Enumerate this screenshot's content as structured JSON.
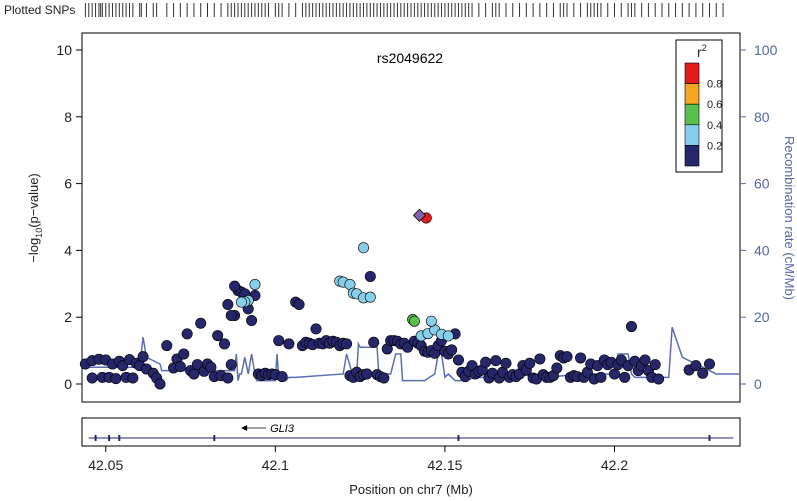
{
  "chart_data": {
    "type": "scatter",
    "title": "rs2049622",
    "xlabel": "Position on chr7 (Mb)",
    "ylabel_left": "−log10(p−value)",
    "ylabel_left_parts": {
      "prefix": "−log",
      "sub": "10",
      "suffix": "(p−value)"
    },
    "ylabel_right": "Recombination rate (cM/Mb)",
    "xlim": [
      42.043,
      42.237
    ],
    "ylim_left": [
      0,
      10
    ],
    "ylim_right": [
      0,
      100
    ],
    "xticks": [
      42.05,
      42.1,
      42.15,
      42.2
    ],
    "xtick_labels": [
      "42.05",
      "42.1",
      "42.15",
      "42.2"
    ],
    "yticks_left": [
      0,
      2,
      4,
      6,
      8,
      10
    ],
    "ytick_labels_left": [
      "0",
      "2",
      "4",
      "6",
      "8",
      "10"
    ],
    "yticks_right": [
      0,
      20,
      40,
      60,
      80,
      100
    ],
    "ytick_labels_right": [
      "0",
      "20",
      "40",
      "60",
      "80",
      "100"
    ],
    "legend": {
      "title": "r",
      "title_sup": "2",
      "placement": "top-right",
      "bins": [
        {
          "label": "0.8",
          "color": "#e41a1c"
        },
        {
          "label": "0.6",
          "color": "#f5a623"
        },
        {
          "label": "0.4",
          "color": "#5bbf4f"
        },
        {
          "label": "0.2",
          "color": "#87ceeb"
        },
        {
          "label": "",
          "color": "#26266b"
        }
      ]
    },
    "strip_label": "Plotted SNPs",
    "lead_snp": {
      "name": "rs2049622",
      "x": 42.1425,
      "y": 5.05,
      "color": "#8a5fb0"
    },
    "colors": {
      "r2_08": "#e41a1c",
      "r2_06": "#f5a623",
      "r2_04": "#5bbf4f",
      "r2_02": "#87ceeb",
      "r2_00": "#26266b",
      "recomb_line": "#5b6eb5",
      "right_axis": "#5566aa",
      "point_outline": "#000000"
    },
    "genes": [
      {
        "name": "GLI3",
        "start": 42.045,
        "end": 42.235,
        "strand": "-",
        "label_x": 42.102,
        "exons": [
          42.047,
          42.051,
          42.054,
          42.082,
          42.154,
          42.228
        ]
      }
    ],
    "series": [
      {
        "name": "r2 0.8-1.0",
        "color": "#e41a1c",
        "points": [
          [
            42.1445,
            4.97
          ]
        ]
      },
      {
        "name": "r2 0.4-0.6",
        "color": "#5bbf4f",
        "points": [
          [
            42.1405,
            1.93
          ],
          [
            42.141,
            1.88
          ]
        ]
      },
      {
        "name": "r2 0.2-0.4",
        "color": "#87ceeb",
        "points": [
          [
            42.126,
            4.08
          ],
          [
            42.119,
            3.08
          ],
          [
            42.12,
            3.05
          ],
          [
            42.122,
            2.98
          ],
          [
            42.123,
            2.72
          ],
          [
            42.124,
            2.7
          ],
          [
            42.126,
            2.58
          ],
          [
            42.128,
            2.6
          ],
          [
            42.094,
            2.98
          ],
          [
            42.092,
            2.5
          ],
          [
            42.091,
            2.46
          ],
          [
            42.09,
            2.45
          ],
          [
            42.143,
            1.44
          ],
          [
            42.145,
            1.51
          ],
          [
            42.147,
            1.62
          ],
          [
            42.146,
            1.88
          ],
          [
            42.149,
            1.49
          ],
          [
            42.151,
            1.44
          ]
        ]
      },
      {
        "name": "r2 0.0-0.2",
        "color": "#26266b",
        "points": [
          [
            42.044,
            0.6
          ],
          [
            42.046,
            0.7
          ],
          [
            42.048,
            0.74
          ],
          [
            42.05,
            0.72
          ],
          [
            42.052,
            0.6
          ],
          [
            42.054,
            0.68
          ],
          [
            42.055,
            0.55
          ],
          [
            42.057,
            0.73
          ],
          [
            42.059,
            0.62
          ],
          [
            42.06,
            0.55
          ],
          [
            42.046,
            0.18
          ],
          [
            42.049,
            0.2
          ],
          [
            42.051,
            0.2
          ],
          [
            42.053,
            0.16
          ],
          [
            42.056,
            0.2
          ],
          [
            42.058,
            0.18
          ],
          [
            42.061,
            0.82
          ],
          [
            42.062,
            0.45
          ],
          [
            42.064,
            0.32
          ],
          [
            42.065,
            0.18
          ],
          [
            42.066,
            0.0
          ],
          [
            42.068,
            1.15
          ],
          [
            42.07,
            0.48
          ],
          [
            42.071,
            0.75
          ],
          [
            42.072,
            0.52
          ],
          [
            42.073,
            0.9
          ],
          [
            42.074,
            1.5
          ],
          [
            42.075,
            0.4
          ],
          [
            42.076,
            0.3
          ],
          [
            42.077,
            0.58
          ],
          [
            42.078,
            1.82
          ],
          [
            42.079,
            0.38
          ],
          [
            42.08,
            0.6
          ],
          [
            42.081,
            0.5
          ],
          [
            42.082,
            0.22
          ],
          [
            42.083,
            1.45
          ],
          [
            42.084,
            0.25
          ],
          [
            42.085,
            1.2
          ],
          [
            42.086,
            0.18
          ],
          [
            42.087,
            0.58
          ],
          [
            42.088,
            2.05
          ],
          [
            42.087,
            2.05
          ],
          [
            42.089,
            2.8
          ],
          [
            42.09,
            2.75
          ],
          [
            42.091,
            2.7
          ],
          [
            42.092,
            2.25
          ],
          [
            42.093,
            1.9
          ],
          [
            42.094,
            2.65
          ],
          [
            42.088,
            2.93
          ],
          [
            42.086,
            2.38
          ],
          [
            42.095,
            0.3
          ],
          [
            42.096,
            0.25
          ],
          [
            42.097,
            0.32
          ],
          [
            42.098,
            0.28
          ],
          [
            42.099,
            0.3
          ],
          [
            42.1,
            0.28
          ],
          [
            42.101,
            1.3
          ],
          [
            42.102,
            0.22
          ],
          [
            42.104,
            1.2
          ],
          [
            42.106,
            2.45
          ],
          [
            42.107,
            2.38
          ],
          [
            42.108,
            1.15
          ],
          [
            42.109,
            1.25
          ],
          [
            42.11,
            1.22
          ],
          [
            42.111,
            1.18
          ],
          [
            42.112,
            1.65
          ],
          [
            42.113,
            1.22
          ],
          [
            42.114,
            1.2
          ],
          [
            42.115,
            1.3
          ],
          [
            42.116,
            1.22
          ],
          [
            42.117,
            1.28
          ],
          [
            42.118,
            1.25
          ],
          [
            42.119,
            1.15
          ],
          [
            42.12,
            1.22
          ],
          [
            42.121,
            1.2
          ],
          [
            42.122,
            0.25
          ],
          [
            42.123,
            0.2
          ],
          [
            42.124,
            0.35
          ],
          [
            42.125,
            0.22
          ],
          [
            42.126,
            0.28
          ],
          [
            42.127,
            0.3
          ],
          [
            42.128,
            3.22
          ],
          [
            42.129,
            1.25
          ],
          [
            42.13,
            0.28
          ],
          [
            42.131,
            0.22
          ],
          [
            42.132,
            0.18
          ],
          [
            42.133,
            1.05
          ],
          [
            42.134,
            1.3
          ],
          [
            42.135,
            1.3
          ],
          [
            42.136,
            1.28
          ],
          [
            42.137,
            1.2
          ],
          [
            42.138,
            1.22
          ],
          [
            42.139,
            1.1
          ],
          [
            42.141,
            1.28
          ],
          [
            42.142,
            1.22
          ],
          [
            42.143,
            1.15
          ],
          [
            42.144,
            0.98
          ],
          [
            42.145,
            0.95
          ],
          [
            42.146,
            1.0
          ],
          [
            42.147,
            0.92
          ],
          [
            42.148,
            1.15
          ],
          [
            42.149,
            1.3
          ],
          [
            42.15,
            0.98
          ],
          [
            42.151,
            0.9
          ],
          [
            42.152,
            1.02
          ],
          [
            42.153,
            1.5
          ],
          [
            42.154,
            0.72
          ],
          [
            42.155,
            0.35
          ],
          [
            42.156,
            0.22
          ],
          [
            42.157,
            0.38
          ],
          [
            42.158,
            0.55
          ],
          [
            42.159,
            0.3
          ],
          [
            42.16,
            0.38
          ],
          [
            42.161,
            0.42
          ],
          [
            42.162,
            0.65
          ],
          [
            42.163,
            0.18
          ],
          [
            42.164,
            0.32
          ],
          [
            42.165,
            0.7
          ],
          [
            42.166,
            0.18
          ],
          [
            42.167,
            0.35
          ],
          [
            42.168,
            0.62
          ],
          [
            42.169,
            0.2
          ],
          [
            42.17,
            0.28
          ],
          [
            42.171,
            0.22
          ],
          [
            42.172,
            0.3
          ],
          [
            42.173,
            0.55
          ],
          [
            42.174,
            0.42
          ],
          [
            42.175,
            0.62
          ],
          [
            42.176,
            0.18
          ],
          [
            42.177,
            0.15
          ],
          [
            42.178,
            0.75
          ],
          [
            42.179,
            0.28
          ],
          [
            42.18,
            0.2
          ],
          [
            42.181,
            0.2
          ],
          [
            42.182,
            0.25
          ],
          [
            42.183,
            0.48
          ],
          [
            42.184,
            0.85
          ],
          [
            42.185,
            0.78
          ],
          [
            42.186,
            0.82
          ],
          [
            42.187,
            0.2
          ],
          [
            42.188,
            0.25
          ],
          [
            42.189,
            0.22
          ],
          [
            42.19,
            0.78
          ],
          [
            42.191,
            0.2
          ],
          [
            42.192,
            0.35
          ],
          [
            42.193,
            0.6
          ],
          [
            42.194,
            0.15
          ],
          [
            42.195,
            0.55
          ],
          [
            42.196,
            0.2
          ],
          [
            42.197,
            0.72
          ],
          [
            42.198,
            0.58
          ],
          [
            42.199,
            0.65
          ],
          [
            42.2,
            0.3
          ],
          [
            42.201,
            0.58
          ],
          [
            42.202,
            0.72
          ],
          [
            42.203,
            0.2
          ],
          [
            42.204,
            0.55
          ],
          [
            42.205,
            1.72
          ],
          [
            42.206,
            0.68
          ],
          [
            42.207,
            0.4
          ],
          [
            42.208,
            0.55
          ],
          [
            42.209,
            0.72
          ],
          [
            42.21,
            0.4
          ],
          [
            42.211,
            0.2
          ],
          [
            42.212,
            0.58
          ],
          [
            42.213,
            0.15
          ],
          [
            42.222,
            0.42
          ],
          [
            42.224,
            0.55
          ],
          [
            42.226,
            0.32
          ],
          [
            42.228,
            0.6
          ]
        ]
      }
    ],
    "recombination": {
      "x": [
        42.043,
        42.055,
        42.06,
        42.061,
        42.062,
        42.066,
        42.0665,
        42.076,
        42.088,
        42.0885,
        42.089,
        42.0895,
        42.09,
        42.091,
        42.092,
        42.093,
        42.094,
        42.0945,
        42.1,
        42.1005,
        42.101,
        42.103,
        42.104,
        42.106,
        42.12,
        42.121,
        42.123,
        42.124,
        42.1245,
        42.125,
        42.13,
        42.1305,
        42.134,
        42.1355,
        42.137,
        42.1375,
        42.144,
        42.147,
        42.148,
        42.149,
        42.15,
        42.151,
        42.153,
        42.154,
        42.155,
        42.16,
        42.165,
        42.17,
        42.18,
        42.19,
        42.195,
        42.2,
        42.201,
        42.204,
        42.205,
        42.206,
        42.216,
        42.217,
        42.22,
        42.23,
        42.237
      ],
      "y": [
        5,
        5,
        5,
        14,
        8,
        6,
        4,
        4,
        4,
        9,
        1,
        3,
        3,
        8,
        3,
        9,
        3,
        1,
        1,
        9,
        2,
        1,
        2,
        2,
        3,
        9,
        2,
        3,
        12,
        11,
        11,
        3,
        3,
        9,
        9,
        1,
        1,
        3,
        9,
        9,
        2,
        3,
        1,
        1,
        1,
        2,
        2,
        3,
        2,
        3,
        3,
        3,
        9,
        9,
        3,
        2,
        2,
        17,
        8,
        3,
        3
      ]
    },
    "plotted_snps": [
      42.044,
      42.045,
      42.046,
      42.047,
      42.048,
      42.0485,
      42.049,
      42.05,
      42.051,
      42.052,
      42.053,
      42.054,
      42.055,
      42.056,
      42.057,
      42.058,
      42.06,
      42.0605,
      42.062,
      42.064,
      42.065,
      42.068,
      42.07,
      42.072,
      42.074,
      42.076,
      42.078,
      42.08,
      42.082,
      42.084,
      42.086,
      42.087,
      42.088,
      42.089,
      42.09,
      42.091,
      42.092,
      42.093,
      42.094,
      42.095,
      42.096,
      42.097,
      42.098,
      42.1,
      42.101,
      42.102,
      42.104,
      42.106,
      42.108,
      42.109,
      42.11,
      42.111,
      42.112,
      42.113,
      42.114,
      42.115,
      42.116,
      42.117,
      42.118,
      42.119,
      42.12,
      42.121,
      42.122,
      42.123,
      42.124,
      42.125,
      42.126,
      42.127,
      42.128,
      42.129,
      42.13,
      42.131,
      42.132,
      42.133,
      42.134,
      42.135,
      42.136,
      42.137,
      42.138,
      42.139,
      42.14,
      42.141,
      42.142,
      42.143,
      42.144,
      42.145,
      42.146,
      42.147,
      42.148,
      42.149,
      42.15,
      42.151,
      42.152,
      42.153,
      42.154,
      42.155,
      42.156,
      42.157,
      42.158,
      42.16,
      42.162,
      42.164,
      42.165,
      42.166,
      42.168,
      42.17,
      42.172,
      42.174,
      42.176,
      42.178,
      42.18,
      42.182,
      42.184,
      42.185,
      42.186,
      42.188,
      42.19,
      42.192,
      42.193,
      42.194,
      42.195,
      42.196,
      42.198,
      42.2,
      42.202,
      42.204,
      42.205,
      42.206,
      42.208,
      42.21,
      42.212,
      42.214,
      42.216,
      42.218,
      42.22,
      42.222,
      42.224,
      42.226,
      42.228,
      42.23,
      42.232
    ]
  }
}
